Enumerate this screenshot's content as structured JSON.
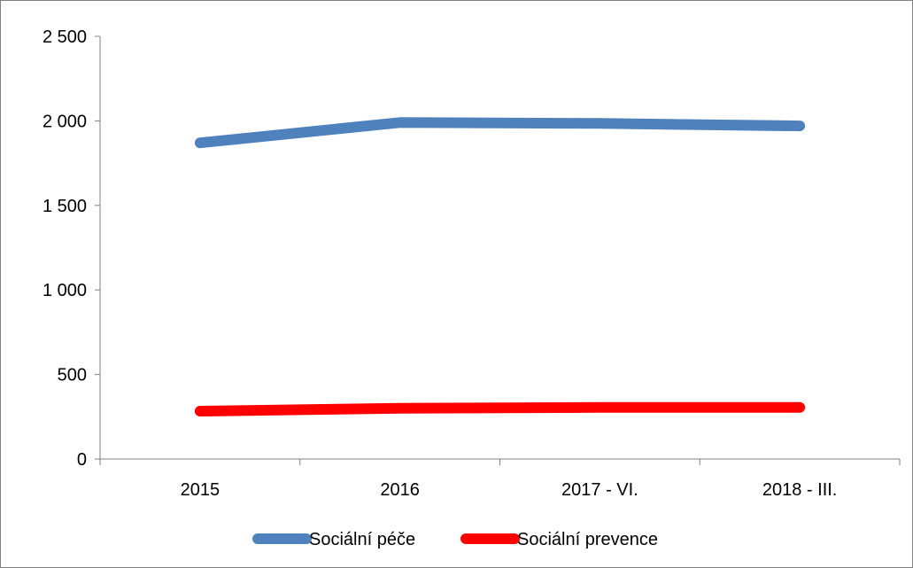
{
  "chart_data": {
    "type": "line",
    "title": "",
    "xlabel": "",
    "ylabel": "",
    "categories": [
      "2015",
      "2016",
      "2017 - VI.",
      "2018 - III."
    ],
    "ylim": [
      0,
      2500
    ],
    "yticks": [
      0,
      500,
      1000,
      1500,
      2000,
      2500
    ],
    "ytick_labels": [
      "0",
      "500",
      "1 000",
      "1 500",
      "2 000",
      "2 500"
    ],
    "grid": false,
    "legend_position": "bottom",
    "series": [
      {
        "name": "Sociální péče",
        "color": "#4f81bd",
        "values": [
          1870,
          1990,
          1985,
          1970
        ]
      },
      {
        "name": "Sociální prevence",
        "color": "#ff0000",
        "values": [
          283,
          300,
          305,
          305
        ]
      }
    ]
  }
}
